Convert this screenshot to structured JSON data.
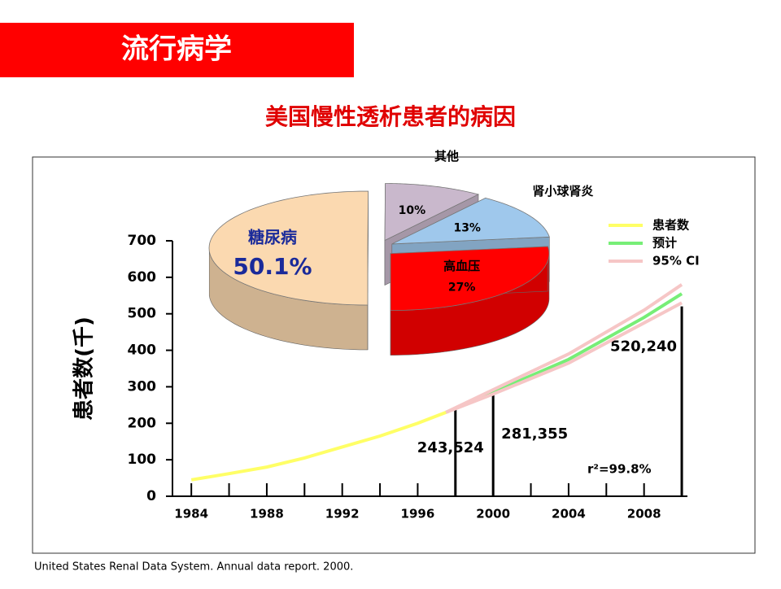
{
  "header": {
    "title": "流行病学"
  },
  "subtitle": "美国慢性透析患者的病因",
  "footnote": "United States Renal Data System. Annual data report. 2000.",
  "chart_data": [
    {
      "type": "line",
      "ylabel": "患者数(千)",
      "xlim": [
        1983,
        2010.3
      ],
      "ylim": [
        0,
        700
      ],
      "xticks": [
        1984,
        1988,
        1992,
        1996,
        2000,
        2004,
        2008
      ],
      "minor_xticks": [
        1986,
        1990,
        1994,
        1998,
        2002,
        2006,
        2010
      ],
      "yticks": [
        0,
        100,
        200,
        300,
        400,
        500,
        600,
        700
      ],
      "series": [
        {
          "name": "患者数",
          "color": "#ffff66",
          "x": [
            1984,
            1986,
            1988,
            1990,
            1992,
            1994,
            1996,
            1997.5
          ],
          "values": [
            45,
            62,
            80,
            105,
            135,
            165,
            200,
            230
          ]
        },
        {
          "name": "预计",
          "color": "#77ee77",
          "x": [
            1997.5,
            2000,
            2004,
            2008,
            2010
          ],
          "values": [
            230,
            285,
            375,
            490,
            555
          ]
        },
        {
          "name": "95% CI",
          "color": "#f6c6c6",
          "x": [
            1997.5,
            2000,
            2004,
            2008,
            2010
          ],
          "lower": [
            230,
            280,
            365,
            475,
            530
          ],
          "upper": [
            230,
            292,
            390,
            510,
            580
          ]
        }
      ],
      "bars": {
        "x": [
          1998,
          2000,
          2010
        ],
        "values": [
          243.524,
          281.355,
          520.24
        ],
        "value_labels": [
          "243,524",
          "281,355",
          "520,240"
        ]
      },
      "annotation": "r²=99.8%"
    },
    {
      "type": "pie",
      "categories": [
        "糖尿病",
        "其他",
        "肾小球肾炎",
        "高血压"
      ],
      "values": [
        50.1,
        10,
        13,
        27
      ],
      "value_labels": [
        "50.1%",
        "10%",
        "13%",
        "27%"
      ],
      "colors": [
        "#fbd9b0",
        "#c9b8cc",
        "#9fc8ec",
        "#ff0000"
      ]
    }
  ]
}
